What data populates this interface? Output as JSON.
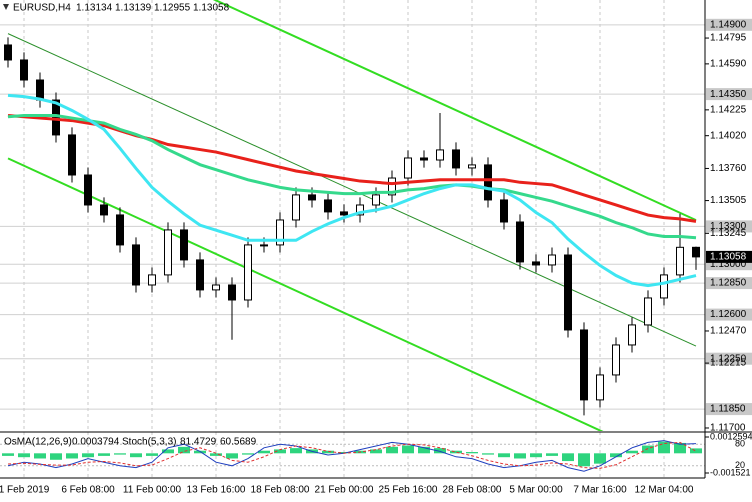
{
  "chart_data": [
    {
      "type": "candlestick",
      "title": "EURUSD,H4",
      "categories": [
        null,
        "1 Feb 2019",
        null,
        null,
        null,
        "6 Feb 08:00",
        null,
        null,
        null,
        "11 Feb 00:00",
        null,
        null,
        null,
        "13 Feb 16:00",
        null,
        null,
        null,
        "18 Feb 08:00",
        null,
        null,
        null,
        "21 Feb 00:00",
        null,
        null,
        null,
        "25 Feb 16:00",
        null,
        null,
        null,
        "28 Feb 08:00",
        null,
        null,
        null,
        "5 Mar 00:00",
        null,
        null,
        null,
        "7 Mar 16:00",
        null,
        null,
        null,
        "12 Mar 04:00",
        null,
        null
      ],
      "open": [
        1.1474,
        1.14621,
        1.14462,
        1.14303,
        1.14026,
        1.13708,
        1.1347,
        1.13391,
        1.13153,
        1.12835,
        1.12915,
        1.13272,
        1.13034,
        1.12796,
        1.12835,
        1.12716,
        1.13153,
        1.13153,
        1.13351,
        1.1355,
        1.1351,
        1.13415,
        1.13391,
        1.1347,
        1.1355,
        1.13684,
        1.13843,
        1.13827,
        1.13907,
        1.13764,
        1.13788,
        1.1351,
        1.13335,
        1.13018,
        1.12994,
        1.13073,
        1.12478,
        1.11923,
        1.12121,
        1.12359,
        1.12518,
        1.12732,
        1.12915,
        1.13134
      ],
      "high": [
        1.148,
        1.14681,
        1.14522,
        1.14363,
        1.14086,
        1.13768,
        1.1353,
        1.13451,
        1.13213,
        1.12975,
        1.13332,
        1.13332,
        1.13094,
        1.12895,
        1.12895,
        1.13213,
        1.13213,
        1.13411,
        1.1361,
        1.1361,
        1.1357,
        1.13475,
        1.1353,
        1.1361,
        1.13744,
        1.13903,
        1.13903,
        1.142,
        1.13967,
        1.13848,
        1.13848,
        1.1357,
        1.13395,
        1.13078,
        1.13133,
        1.13133,
        1.12538,
        1.12181,
        1.12419,
        1.12578,
        1.12792,
        1.12975,
        1.134,
        1.13139
      ],
      "low": [
        1.14561,
        1.14402,
        1.14243,
        1.13966,
        1.13648,
        1.1341,
        1.13331,
        1.13093,
        1.12775,
        1.12775,
        1.12855,
        1.12974,
        1.12736,
        1.12736,
        1.124,
        1.12656,
        1.13093,
        1.13093,
        1.13291,
        1.1345,
        1.13355,
        1.13331,
        1.13331,
        1.1341,
        1.1349,
        1.13624,
        1.13767,
        1.13767,
        1.13704,
        1.13704,
        1.1345,
        1.13275,
        1.12958,
        1.12934,
        1.12934,
        1.12418,
        1.118,
        1.11863,
        1.12061,
        1.12299,
        1.12458,
        1.12672,
        1.12855,
        1.12955
      ],
      "close": [
        1.14621,
        1.14462,
        1.14303,
        1.14026,
        1.13708,
        1.1347,
        1.13391,
        1.13153,
        1.12835,
        1.12915,
        1.13272,
        1.13034,
        1.12796,
        1.12835,
        1.12716,
        1.13153,
        1.13153,
        1.13351,
        1.1355,
        1.1351,
        1.13415,
        1.13391,
        1.1347,
        1.1355,
        1.13684,
        1.13843,
        1.13827,
        1.13907,
        1.13764,
        1.13788,
        1.1351,
        1.13335,
        1.13018,
        1.12994,
        1.13073,
        1.12478,
        1.11923,
        1.12121,
        1.12359,
        1.12518,
        1.12732,
        1.12915,
        1.13134,
        1.13058
      ],
      "candle_color": "#000000",
      "series": [
        {
          "color": "#e8211b",
          "values": [
            1.1418,
            1.1417,
            1.1416,
            1.1415,
            1.1414,
            1.1412,
            1.141,
            1.1406,
            1.1402,
            1.1399,
            1.1395,
            1.1393,
            1.1391,
            1.1389,
            1.1386,
            1.1383,
            1.138,
            1.1377,
            1.1374,
            1.1372,
            1.137,
            1.1368,
            1.1366,
            1.1365,
            1.1364,
            1.1365,
            1.1366,
            1.1367,
            1.1367,
            1.1367,
            1.1367,
            1.1367,
            1.1365,
            1.1364,
            1.1363,
            1.1359,
            1.1355,
            1.1351,
            1.1347,
            1.1343,
            1.1339,
            1.1337,
            1.1336,
            1.1334
          ]
        },
        {
          "color": "#35d98c",
          "values": [
            1.1417,
            1.1418,
            1.1418,
            1.1418,
            1.1416,
            1.1414,
            1.1412,
            1.1407,
            1.1403,
            1.1398,
            1.1391,
            1.1385,
            1.1379,
            1.1375,
            1.1371,
            1.1367,
            1.1364,
            1.1361,
            1.1359,
            1.1358,
            1.1357,
            1.1356,
            1.1356,
            1.1357,
            1.1357,
            1.1359,
            1.136,
            1.1362,
            1.1363,
            1.1362,
            1.136,
            1.1359,
            1.1356,
            1.1353,
            1.135,
            1.1346,
            1.1342,
            1.1338,
            1.1333,
            1.1329,
            1.1324,
            1.1322,
            1.1322,
            1.1321
          ]
        },
        {
          "color": "#3ee6f2",
          "values": [
            1.1434,
            1.1433,
            1.1431,
            1.1428,
            1.1422,
            1.1415,
            1.1407,
            1.1392,
            1.1376,
            1.1361,
            1.135,
            1.134,
            1.1331,
            1.1327,
            1.1323,
            1.1319,
            1.1319,
            1.1319,
            1.1319,
            1.1326,
            1.1332,
            1.1337,
            1.1341,
            1.1343,
            1.1346,
            1.1351,
            1.1356,
            1.136,
            1.1363,
            1.1363,
            1.136,
            1.1358,
            1.1351,
            1.1341,
            1.1333,
            1.132,
            1.1309,
            1.1299,
            1.1291,
            1.1285,
            1.1283,
            1.1285,
            1.1288,
            1.1291
          ]
        }
      ],
      "trendlines": [
        {
          "color": "#33dd22",
          "values": [
            1.1585,
            1.1335
          ]
        },
        {
          "color": "#2a8f2a",
          "values": [
            1.1483,
            1.1235
          ]
        },
        {
          "color": "#33dd22",
          "values": [
            1.1384,
            1.1133
          ]
        }
      ],
      "ylim": [
        1.11684,
        1.15097
      ],
      "yticks": [
        1.14795,
        {
          "value": 1.1459,
          "label": "1.14590"
        },
        1.14225,
        {
          "value": 1.1402,
          "label": "1.14020"
        },
        {
          "value": 1.1376,
          "label": "1.13760"
        },
        1.13505,
        1.13245,
        {
          "value": 1.1247,
          "label": "1.12470"
        },
        1.12215,
        {
          "value": 1.117,
          "label": "1.11700"
        }
      ],
      "levels": [
        {
          "value": 1.149,
          "label": "1.14900"
        },
        {
          "value": 1.1435,
          "label": "1.14350"
        },
        {
          "value": 1.133,
          "label": "1.13300"
        },
        {
          "value": 1.13,
          "label": "1.13000"
        },
        {
          "value": 1.1285,
          "label": "1.12850"
        },
        {
          "value": 1.126,
          "label": "1.12600"
        },
        {
          "value": 1.1225,
          "label": "1.12250"
        },
        {
          "value": 1.1185,
          "label": "1.11850"
        }
      ],
      "grid": true
    },
    {
      "type": "oscillator",
      "osma_label": "OsMA(12,26,9)",
      "stoch_label": "Stoch(5,3,3)",
      "osma": {
        "color": "#2ed47e",
        "values": [
          -0.0002,
          -0.0003,
          -0.0004,
          -0.0005,
          -0.0004,
          -0.0003,
          -0.0002,
          -0.0001,
          -0.0003,
          -0.0002,
          0.0003,
          0.0005,
          0.0002,
          -0.0002,
          -0.0004,
          -0.0001,
          0.0002,
          0.0003,
          0.0004,
          0.0003,
          0.0002,
          0.0001,
          0.0002,
          0.0003,
          0.0005,
          0.0006,
          0.0005,
          0.0004,
          0.0002,
          0.0001,
          -0.0001,
          -0.0003,
          -0.0004,
          -0.0003,
          -0.0002,
          -0.0006,
          -0.001,
          -0.0008,
          -0.0003,
          0.0002,
          0.0006,
          0.0009,
          0.0008,
          0.0003794
        ]
      },
      "stoch_main": {
        "color": "#1f3fbf",
        "values": [
          20,
          30,
          25,
          15,
          25,
          40,
          30,
          20,
          15,
          30,
          70,
          80,
          60,
          30,
          20,
          40,
          70,
          80,
          75,
          60,
          50,
          55,
          65,
          75,
          85,
          80,
          70,
          60,
          45,
          40,
          25,
          15,
          20,
          30,
          35,
          15,
          5,
          20,
          45,
          70,
          85,
          90,
          80,
          81.4729
        ]
      },
      "stoch_signal": {
        "color": "#e03030",
        "values": [
          25,
          27,
          24,
          22,
          22,
          30,
          32,
          28,
          20,
          22,
          40,
          60,
          70,
          55,
          35,
          30,
          45,
          65,
          75,
          70,
          60,
          55,
          58,
          65,
          75,
          80,
          78,
          70,
          58,
          48,
          35,
          25,
          20,
          22,
          28,
          25,
          15,
          13,
          23,
          45,
          68,
          82,
          85,
          60.5689
        ]
      },
      "ylim": [
        -0.001521,
        0.0012594
      ],
      "yticks": [
        0.0012594,
        -0.001521
      ],
      "y2lim": [
        0,
        100
      ],
      "y2ticks": [
        80,
        20
      ]
    }
  ]
}
